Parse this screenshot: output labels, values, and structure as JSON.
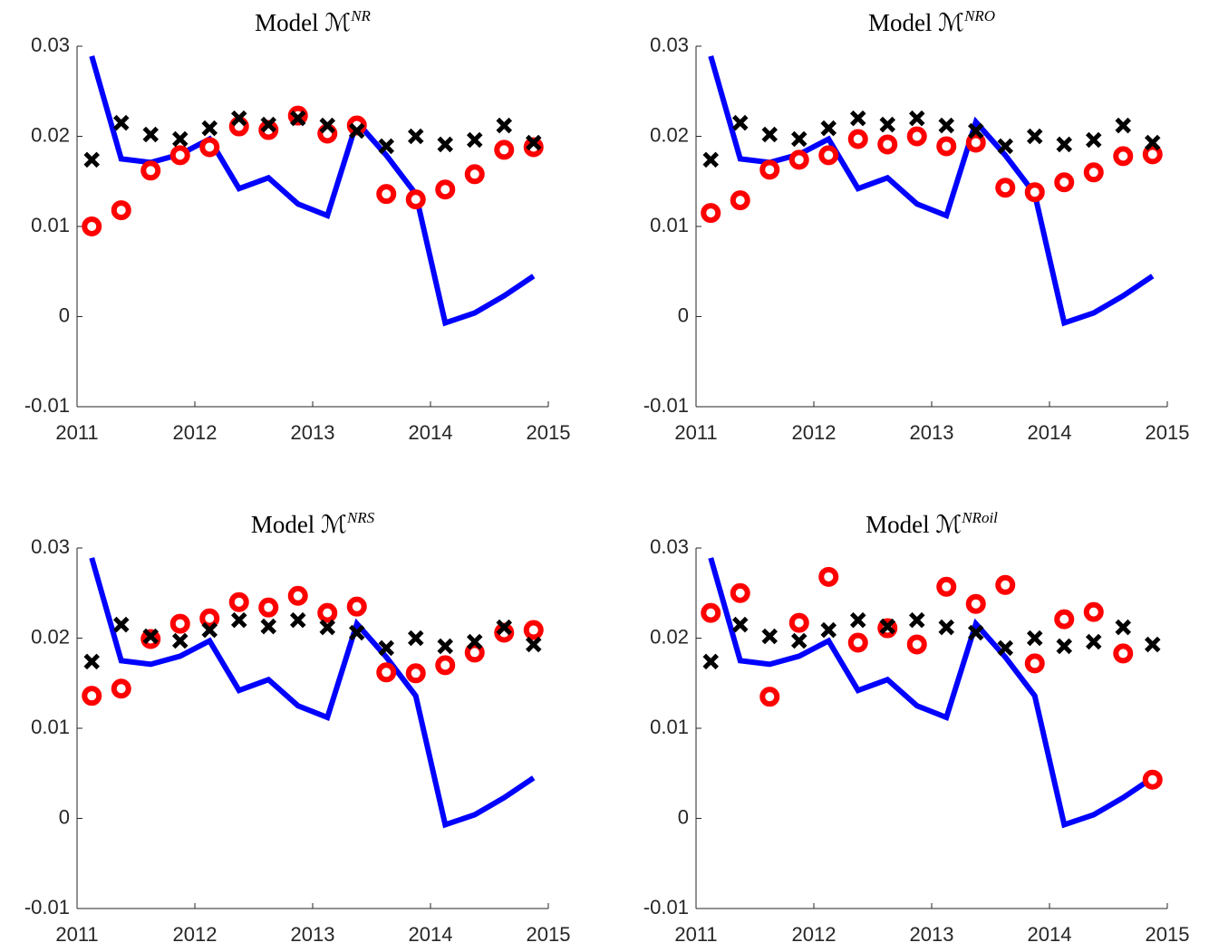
{
  "chart_data": [
    {
      "type": "line",
      "title": "Model ℳ",
      "title_superscript": "NR",
      "x": [
        2011.125,
        2011.375,
        2011.625,
        2011.875,
        2012.125,
        2012.375,
        2012.625,
        2012.875,
        2013.125,
        2013.375,
        2013.625,
        2013.875,
        2014.125,
        2014.375,
        2014.625,
        2014.875
      ],
      "xlim": [
        2011,
        2015
      ],
      "xticks": [
        2011,
        2012,
        2013,
        2014,
        2015
      ],
      "ylim": [
        -0.01,
        0.03
      ],
      "yticks": [
        -0.01,
        0,
        0.01,
        0.02,
        0.03
      ],
      "series": [
        {
          "color": "#0000ff",
          "marker": "none",
          "values": [
            0.0289,
            0.0175,
            0.0171,
            0.018,
            0.0197,
            0.0142,
            0.0154,
            0.0125,
            0.0112,
            0.0216,
            0.0179,
            0.0136,
            -0.0007,
            0.0004,
            0.0023,
            0.0045
          ]
        },
        {
          "color": "#ff0000",
          "marker": "o",
          "values": [
            0.01,
            0.0118,
            0.0162,
            0.0179,
            0.0188,
            0.0211,
            0.0207,
            0.0223,
            0.0203,
            0.0212,
            0.0136,
            0.013,
            0.0141,
            0.0158,
            0.0185,
            0.0188
          ]
        },
        {
          "color": "#000000",
          "marker": "x",
          "values": [
            0.0174,
            0.0215,
            0.0202,
            0.0197,
            0.0209,
            0.022,
            0.0213,
            0.022,
            0.0212,
            0.0206,
            0.0189,
            0.02,
            0.0191,
            0.0196,
            0.0212,
            0.0193
          ]
        }
      ]
    },
    {
      "type": "line",
      "title": "Model ℳ",
      "title_superscript": "NRO",
      "x": [
        2011.125,
        2011.375,
        2011.625,
        2011.875,
        2012.125,
        2012.375,
        2012.625,
        2012.875,
        2013.125,
        2013.375,
        2013.625,
        2013.875,
        2014.125,
        2014.375,
        2014.625,
        2014.875
      ],
      "xlim": [
        2011,
        2015
      ],
      "xticks": [
        2011,
        2012,
        2013,
        2014,
        2015
      ],
      "ylim": [
        -0.01,
        0.03
      ],
      "yticks": [
        -0.01,
        0,
        0.01,
        0.02,
        0.03
      ],
      "series": [
        {
          "color": "#0000ff",
          "marker": "none",
          "values": [
            0.0289,
            0.0175,
            0.0171,
            0.018,
            0.0197,
            0.0142,
            0.0154,
            0.0125,
            0.0112,
            0.0216,
            0.0179,
            0.0136,
            -0.0007,
            0.0004,
            0.0023,
            0.0045
          ]
        },
        {
          "color": "#ff0000",
          "marker": "o",
          "values": [
            0.0115,
            0.0129,
            0.0163,
            0.0174,
            0.0179,
            0.0197,
            0.0191,
            0.02,
            0.0189,
            0.0193,
            0.0143,
            0.0138,
            0.0149,
            0.016,
            0.0178,
            0.018
          ]
        },
        {
          "color": "#000000",
          "marker": "x",
          "values": [
            0.0174,
            0.0215,
            0.0202,
            0.0197,
            0.0209,
            0.022,
            0.0213,
            0.022,
            0.0212,
            0.0206,
            0.0189,
            0.02,
            0.0191,
            0.0196,
            0.0212,
            0.0193
          ]
        }
      ]
    },
    {
      "type": "line",
      "title": "Model ℳ",
      "title_superscript": "NRS",
      "x": [
        2011.125,
        2011.375,
        2011.625,
        2011.875,
        2012.125,
        2012.375,
        2012.625,
        2012.875,
        2013.125,
        2013.375,
        2013.625,
        2013.875,
        2014.125,
        2014.375,
        2014.625,
        2014.875
      ],
      "xlim": [
        2011,
        2015
      ],
      "xticks": [
        2011,
        2012,
        2013,
        2014,
        2015
      ],
      "ylim": [
        -0.01,
        0.03
      ],
      "yticks": [
        -0.01,
        0,
        0.01,
        0.02,
        0.03
      ],
      "series": [
        {
          "color": "#0000ff",
          "marker": "none",
          "values": [
            0.0289,
            0.0175,
            0.0171,
            0.018,
            0.0197,
            0.0142,
            0.0154,
            0.0125,
            0.0112,
            0.0216,
            0.0179,
            0.0136,
            -0.0007,
            0.0004,
            0.0023,
            0.0045
          ]
        },
        {
          "color": "#ff0000",
          "marker": "o",
          "values": [
            0.0136,
            0.0144,
            0.0199,
            0.0216,
            0.0222,
            0.024,
            0.0234,
            0.0247,
            0.0228,
            0.0235,
            0.0162,
            0.0161,
            0.017,
            0.0184,
            0.0206,
            0.0209
          ]
        },
        {
          "color": "#000000",
          "marker": "x",
          "values": [
            0.0174,
            0.0215,
            0.0202,
            0.0197,
            0.0209,
            0.022,
            0.0213,
            0.022,
            0.0212,
            0.0206,
            0.0189,
            0.02,
            0.0191,
            0.0196,
            0.0212,
            0.0193
          ]
        }
      ]
    },
    {
      "type": "line",
      "title": "Model ℳ",
      "title_superscript": "NRoil",
      "x": [
        2011.125,
        2011.375,
        2011.625,
        2011.875,
        2012.125,
        2012.375,
        2012.625,
        2012.875,
        2013.125,
        2013.375,
        2013.625,
        2013.875,
        2014.125,
        2014.375,
        2014.625,
        2014.875
      ],
      "xlim": [
        2011,
        2015
      ],
      "xticks": [
        2011,
        2012,
        2013,
        2014,
        2015
      ],
      "ylim": [
        -0.01,
        0.03
      ],
      "yticks": [
        -0.01,
        0,
        0.01,
        0.02,
        0.03
      ],
      "series": [
        {
          "color": "#0000ff",
          "marker": "none",
          "values": [
            0.0289,
            0.0175,
            0.0171,
            0.018,
            0.0197,
            0.0142,
            0.0154,
            0.0125,
            0.0112,
            0.0216,
            0.0179,
            0.0136,
            -0.0007,
            0.0004,
            0.0023,
            0.0045
          ]
        },
        {
          "color": "#ff0000",
          "marker": "o",
          "values": [
            0.0228,
            0.025,
            0.0135,
            0.0217,
            0.0268,
            0.0195,
            0.0211,
            0.0193,
            0.0257,
            0.0238,
            0.0259,
            0.0172,
            0.0221,
            0.0229,
            0.0183,
            0.0043
          ]
        },
        {
          "color": "#000000",
          "marker": "x",
          "values": [
            0.0174,
            0.0215,
            0.0202,
            0.0197,
            0.0209,
            0.022,
            0.0213,
            0.022,
            0.0212,
            0.0206,
            0.0189,
            0.02,
            0.0191,
            0.0196,
            0.0212,
            0.0193
          ]
        }
      ]
    }
  ]
}
